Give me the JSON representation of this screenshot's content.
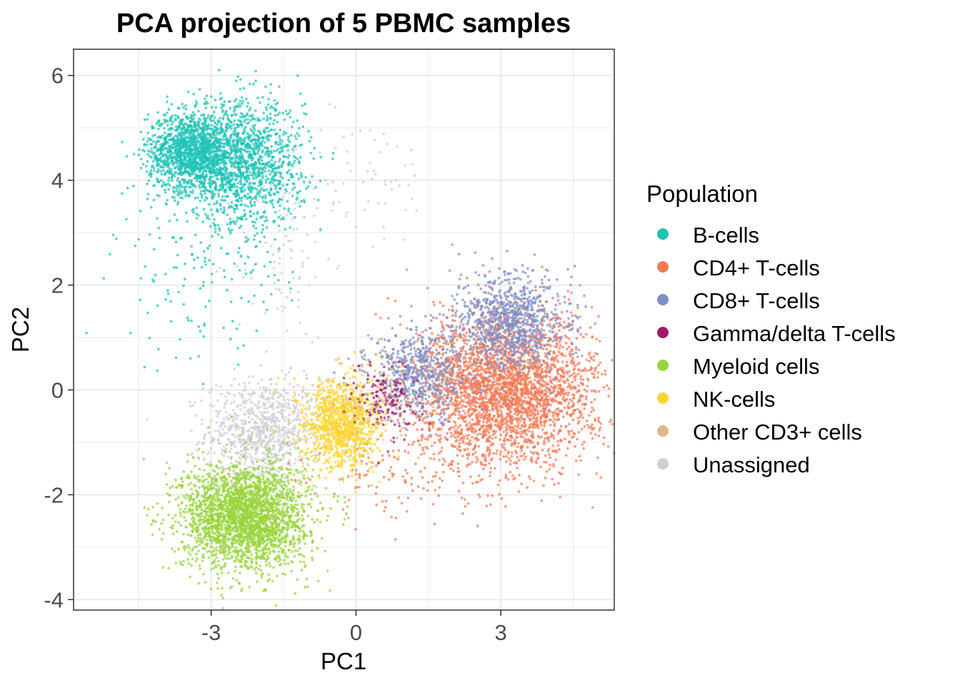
{
  "chart_data": {
    "type": "scatter",
    "title": "PCA projection of 5 PBMC samples",
    "xlabel": "PC1",
    "ylabel": "PC2",
    "xlim": [
      -5.85,
      5.35
    ],
    "ylim": [
      -4.2,
      6.5
    ],
    "x_ticks": [
      -3,
      0,
      3
    ],
    "x_tick_labels": [
      "-3",
      "0",
      "3"
    ],
    "y_ticks": [
      -4,
      -2,
      0,
      2,
      4,
      6
    ],
    "y_tick_labels": [
      "-4",
      "-2",
      "0",
      "2",
      "4",
      "6"
    ],
    "grid": true,
    "legend": {
      "title": "Population",
      "position": "right",
      "entries": [
        {
          "label": "B-cells",
          "color": "#1FC3B6"
        },
        {
          "label": "CD4+ T-cells",
          "color": "#F47A55"
        },
        {
          "label": "CD8+ T-cells",
          "color": "#7D8FC7"
        },
        {
          "label": "Gamma/delta T-cells",
          "color": "#9E1C6A"
        },
        {
          "label": "Myeloid cells",
          "color": "#98D43C"
        },
        {
          "label": "NK-cells",
          "color": "#FED533"
        },
        {
          "label": "Other CD3+ cells",
          "color": "#E0B885"
        },
        {
          "label": "Unassigned",
          "color": "#CFCFD6"
        }
      ]
    },
    "series": [
      {
        "name": "Unassigned",
        "clusters": [
          {
            "center": [
              -1.9,
              -0.8
            ],
            "spread": [
              0.6,
              0.5
            ],
            "n": 900
          },
          {
            "center": [
              -1.5,
              2.5
            ],
            "spread": [
              0.5,
              0.8
            ],
            "n": 90
          },
          {
            "center": [
              0.0,
              4.0
            ],
            "spread": [
              0.9,
              0.7
            ],
            "n": 70
          }
        ]
      },
      {
        "name": "B-cells",
        "clusters": [
          {
            "center": [
              -3.4,
              4.55
            ],
            "spread": [
              0.45,
              0.38
            ],
            "n": 1400
          },
          {
            "center": [
              -2.3,
              4.3
            ],
            "spread": [
              0.6,
              0.6
            ],
            "n": 1300
          },
          {
            "center": [
              -3.2,
              2.2
            ],
            "spread": [
              0.9,
              0.9
            ],
            "n": 140
          }
        ]
      },
      {
        "name": "Myeloid cells",
        "clusters": [
          {
            "center": [
              -2.3,
              -2.4
            ],
            "spread": [
              0.65,
              0.5
            ],
            "n": 2600
          }
        ]
      },
      {
        "name": "CD4+ T-cells",
        "clusters": [
          {
            "center": [
              3.1,
              0.0
            ],
            "spread": [
              0.95,
              0.72
            ],
            "n": 3200
          },
          {
            "center": [
              0.8,
              -1.6
            ],
            "spread": [
              0.9,
              0.5
            ],
            "n": 120
          }
        ]
      },
      {
        "name": "CD8+ T-cells",
        "clusters": [
          {
            "center": [
              3.2,
              1.3
            ],
            "spread": [
              0.55,
              0.45
            ],
            "n": 900
          },
          {
            "center": [
              1.3,
              0.3
            ],
            "spread": [
              0.5,
              0.4
            ],
            "n": 550
          }
        ]
      },
      {
        "name": "NK-cells",
        "clusters": [
          {
            "center": [
              -0.3,
              -0.65
            ],
            "spread": [
              0.38,
              0.42
            ],
            "n": 1100
          }
        ]
      },
      {
        "name": "Gamma/delta T-cells",
        "clusters": [
          {
            "center": [
              0.6,
              -0.2
            ],
            "spread": [
              0.35,
              0.35
            ],
            "n": 160
          }
        ]
      },
      {
        "name": "Other CD3+ cells",
        "clusters": [
          {
            "center": [
              0.5,
              -0.3
            ],
            "spread": [
              0.6,
              0.5
            ],
            "n": 90
          }
        ]
      }
    ]
  }
}
